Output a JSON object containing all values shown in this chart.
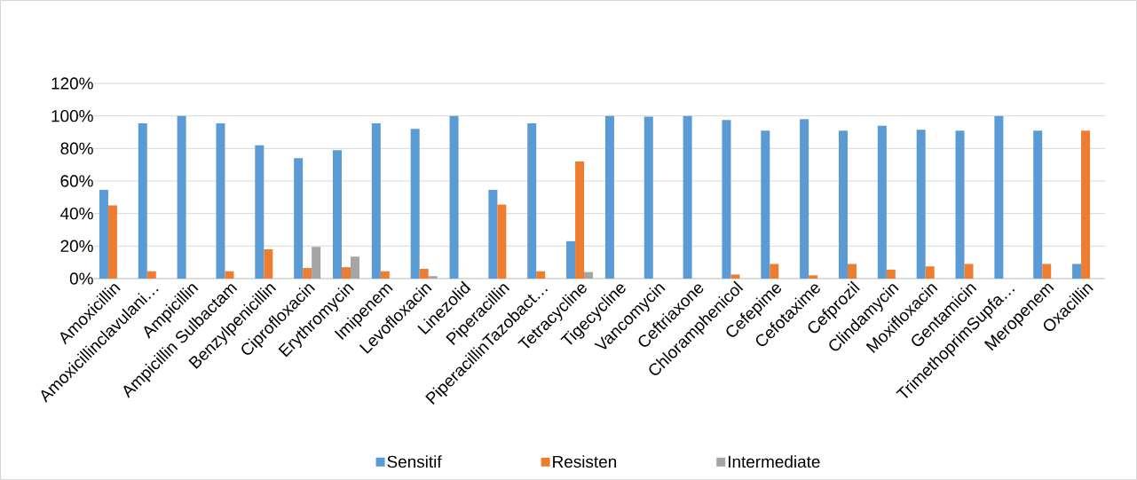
{
  "chart_data": {
    "type": "bar",
    "categories": [
      "Amoxicillin",
      "Amoxicillinclavulani…",
      "Ampicillin",
      "Ampicillin Sulbactam",
      "Benzylpenicillin",
      "Ciprofloxacin",
      "Erythromycin",
      "Imipenem",
      "Levofloxacin",
      "Linezolid",
      "Piperacillin",
      "PiperacillinTazobact…",
      "Tetracycline",
      "Tigecycline",
      "Vancomycin",
      "Ceftriaxone",
      "Chloramphenicol",
      "Cefepime",
      "Cefotaxime",
      "Cefprozil",
      "Clindamycin",
      "Moxifloxacin",
      "Gentamicin",
      "TrimethoprimSupfa…",
      "Meropenem",
      "Oxacillin"
    ],
    "series": [
      {
        "name": "Sensitif",
        "color": "#5b9bd5",
        "values": [
          54.5,
          95.5,
          100,
          95.5,
          82,
          74,
          79,
          95.5,
          92,
          100,
          54.5,
          95.5,
          23,
          100,
          99.5,
          100,
          97.5,
          91,
          98,
          91,
          94,
          91.5,
          91,
          100,
          91,
          9
        ]
      },
      {
        "name": "Resisten",
        "color": "#ed7d31",
        "values": [
          45,
          4.5,
          null,
          4.5,
          18,
          6.5,
          7,
          4.5,
          6,
          null,
          45.5,
          4.5,
          72,
          null,
          null,
          null,
          2.5,
          9,
          2,
          9,
          5.5,
          7.5,
          9,
          null,
          9,
          91
        ]
      },
      {
        "name": "Intermediate",
        "color": "#a5a5a5",
        "values": [
          null,
          null,
          null,
          null,
          null,
          19.5,
          13.5,
          null,
          1.5,
          null,
          null,
          null,
          4,
          null,
          null,
          null,
          null,
          null,
          null,
          null,
          null,
          null,
          null,
          null,
          null,
          null
        ]
      }
    ],
    "ylim": [
      0,
      120
    ],
    "yticks": [
      {
        "value": 0,
        "label": "0%"
      },
      {
        "value": 20,
        "label": "20%"
      },
      {
        "value": 40,
        "label": "40%"
      },
      {
        "value": 60,
        "label": "60%"
      },
      {
        "value": 80,
        "label": "80%"
      },
      {
        "value": 100,
        "label": "100%"
      },
      {
        "value": 120,
        "label": "120%"
      }
    ],
    "grid": "y",
    "legend": "bottom"
  }
}
